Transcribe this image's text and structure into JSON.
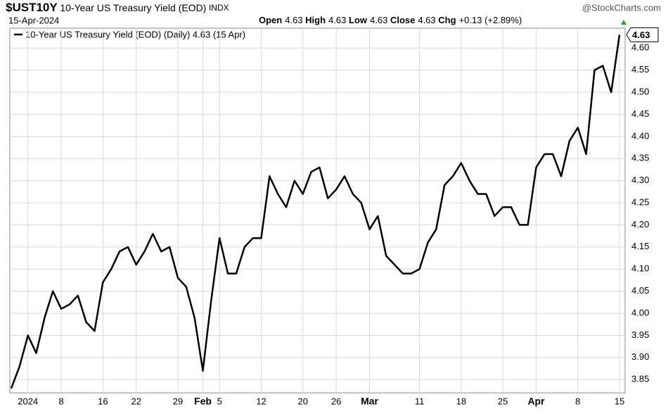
{
  "header": {
    "symbol": "$UST10Y",
    "name": "10-Year US Treasury Yield (EOD)",
    "exchange": "INDX",
    "watermark": "@StockCharts.com",
    "date": "15-Apr-2024",
    "stats": [
      {
        "label": "Open",
        "value": "4.63"
      },
      {
        "label": "High",
        "value": "4.63"
      },
      {
        "label": "Low",
        "value": "4.63"
      },
      {
        "label": "Close",
        "value": "4.63"
      },
      {
        "label": "Chg",
        "value": "+0.13 (+2.89%)"
      }
    ]
  },
  "chart_data": {
    "type": "line",
    "legend": "10-Year US Treasury Yield (EOD) (Daily) 4.63 (15 Apr)",
    "color": "#000000",
    "categories": [
      null,
      null,
      "2024",
      null,
      null,
      null,
      "8",
      null,
      null,
      null,
      null,
      "16",
      null,
      null,
      null,
      "22",
      null,
      null,
      null,
      null,
      "29",
      null,
      null,
      "Feb",
      null,
      "5",
      null,
      null,
      null,
      null,
      "12",
      null,
      null,
      null,
      null,
      "20",
      null,
      null,
      null,
      "26",
      null,
      null,
      null,
      "Mar",
      null,
      null,
      null,
      null,
      null,
      "11",
      null,
      null,
      null,
      null,
      "18",
      null,
      null,
      null,
      null,
      "25",
      null,
      null,
      null,
      "Apr",
      null,
      null,
      null,
      null,
      "8",
      null,
      null,
      null,
      null,
      "15"
    ],
    "values": [
      3.83,
      3.88,
      3.95,
      3.91,
      3.99,
      4.05,
      4.01,
      4.02,
      4.04,
      3.98,
      3.96,
      4.07,
      4.1,
      4.14,
      4.15,
      4.11,
      4.14,
      4.18,
      4.14,
      4.15,
      4.08,
      4.06,
      3.99,
      3.87,
      4.03,
      4.17,
      4.09,
      4.09,
      4.15,
      4.17,
      4.17,
      4.31,
      4.27,
      4.24,
      4.3,
      4.27,
      4.32,
      4.33,
      4.26,
      4.28,
      4.31,
      4.27,
      4.25,
      4.19,
      4.22,
      4.13,
      4.11,
      4.09,
      4.09,
      4.1,
      4.16,
      4.19,
      4.29,
      4.31,
      4.34,
      4.3,
      4.27,
      4.27,
      4.22,
      4.24,
      4.24,
      4.2,
      4.2,
      4.33,
      4.36,
      4.36,
      4.31,
      4.39,
      4.42,
      4.36,
      4.55,
      4.56,
      4.5,
      4.63
    ],
    "ylim": [
      3.82,
      4.645
    ],
    "yticks": [
      3.85,
      {
        "value": 3.9,
        "label": "3.90"
      },
      3.95,
      {
        "value": 4.0,
        "label": "4.00"
      },
      4.05,
      {
        "value": 4.1,
        "label": "4.10"
      },
      4.15,
      {
        "value": 4.2,
        "label": "4.20"
      },
      4.25,
      {
        "value": 4.3,
        "label": "4.30"
      },
      4.35,
      {
        "value": 4.4,
        "label": "4.40"
      },
      4.45,
      {
        "value": 4.5,
        "label": "4.50"
      },
      4.55,
      {
        "value": 4.6,
        "label": "4.60"
      }
    ],
    "grid": true
  }
}
